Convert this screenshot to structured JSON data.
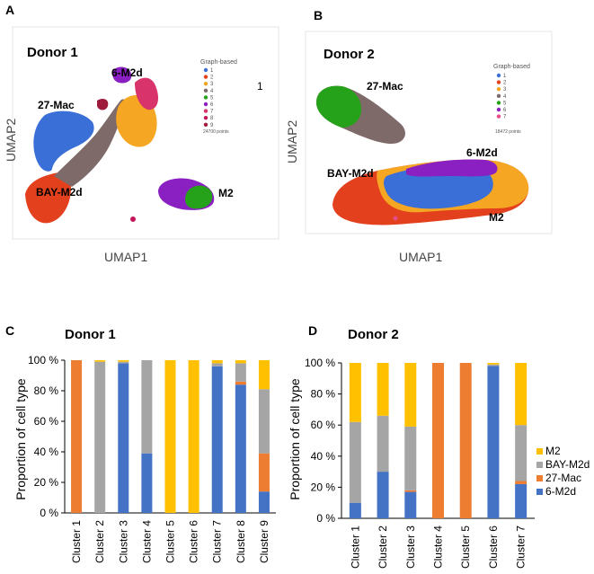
{
  "panels": {
    "A": {
      "letter": "A",
      "donor": "Donor 1",
      "xlabel": "UMAP1",
      "ylabel": "UMAP2",
      "legend_title": "Graph-based",
      "legend_items": [
        "1",
        "2",
        "3",
        "4",
        "5",
        "6",
        "7",
        "8",
        "9"
      ],
      "points": "24700 points",
      "cluster_labels": [
        "6-M2d",
        "27-Mac",
        "BAY-M2d",
        "M2"
      ],
      "stray_mark": "1"
    },
    "B": {
      "letter": "B",
      "donor": "Donor 2",
      "xlabel": "UMAP1",
      "ylabel": "UMAP2",
      "legend_title": "Graph-based",
      "legend_items": [
        "1",
        "2",
        "3",
        "4",
        "5",
        "6",
        "7"
      ],
      "points": "18472 points",
      "cluster_labels": [
        "27-Mac",
        "6-M2d",
        "BAY-M2d",
        "M2"
      ]
    },
    "C": {
      "letter": "C"
    },
    "D": {
      "letter": "D"
    }
  },
  "colors": {
    "M2": "#FFC000",
    "BAY-M2d": "#A5A5A5",
    "27-Mac": "#ED7D31",
    "6-M2d": "#4472C4",
    "umap": [
      "#3A6FD8",
      "#E3411E",
      "#F5A623",
      "#7F6A6A",
      "#26A11A",
      "#8A1FC2",
      "#D8336A",
      "#C2185B",
      "#9E1B3B"
    ],
    "umap_d2": [
      "#3A6FD8",
      "#E3411E",
      "#F5A623",
      "#7F6A6A",
      "#26A11A",
      "#8A1FC2",
      "#E94B8A"
    ]
  },
  "chart_data": [
    {
      "type": "bar",
      "stacked": true,
      "title": "Donor 1",
      "ylabel": "Proportion of cell type",
      "xlabel": "",
      "ylim": [
        0,
        100
      ],
      "yticks": [
        "0 %",
        "20 %",
        "40 %",
        "60 %",
        "80 %",
        "100 %"
      ],
      "categories": [
        "Cluster 1",
        "Cluster 2",
        "Cluster 3",
        "Cluster 4",
        "Cluster 5",
        "Cluster 6",
        "Cluster 7",
        "Cluster 8",
        "Cluster 9"
      ],
      "series": [
        {
          "name": "6-M2d",
          "values": [
            0,
            0,
            98,
            39,
            0,
            0,
            96,
            84,
            14
          ]
        },
        {
          "name": "27-Mac",
          "values": [
            100,
            0,
            0,
            0,
            0,
            0,
            0,
            2,
            25
          ]
        },
        {
          "name": "BAY-M2d",
          "values": [
            0,
            99,
            1,
            61,
            0,
            0,
            2,
            12,
            42
          ]
        },
        {
          "name": "M2",
          "values": [
            0,
            1,
            1,
            0,
            100,
            100,
            2,
            2,
            19
          ]
        }
      ]
    },
    {
      "type": "bar",
      "stacked": true,
      "title": "Donor 2",
      "ylabel": "Proportion of cell type",
      "xlabel": "",
      "ylim": [
        0,
        100
      ],
      "yticks": [
        "0 %",
        "20 %",
        "40 %",
        "60 %",
        "80 %",
        "100 %"
      ],
      "categories": [
        "Cluster 1",
        "Cluster 2",
        "Cluster 3",
        "Cluster 4",
        "Cluster 5",
        "Cluster 6",
        "Cluster 7"
      ],
      "legend": [
        "M2",
        "BAY-M2d",
        "27-Mac",
        "6-M2d"
      ],
      "legend_position": "right",
      "series": [
        {
          "name": "6-M2d",
          "values": [
            10,
            30,
            17,
            0,
            0,
            98,
            22
          ]
        },
        {
          "name": "27-Mac",
          "values": [
            0,
            0,
            1,
            100,
            100,
            0,
            2
          ]
        },
        {
          "name": "BAY-M2d",
          "values": [
            52,
            36,
            41,
            0,
            0,
            1,
            36
          ]
        },
        {
          "name": "M2",
          "values": [
            38,
            34,
            41,
            0,
            0,
            1,
            40
          ]
        }
      ]
    }
  ]
}
